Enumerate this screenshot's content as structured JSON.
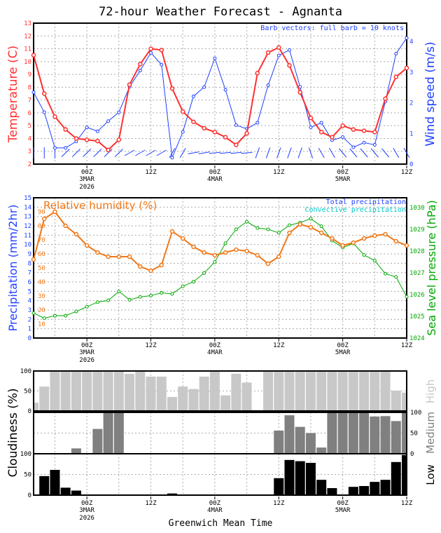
{
  "title": "72-hour Weather Forecast - Agnanta",
  "colors": {
    "temperature": "#ff3030",
    "wind": "#2040ff",
    "humidity": "#f07818",
    "pressure": "#00a800",
    "convective": "#00c8c8",
    "high_cloud": "#c8c8c8",
    "medium_cloud": "#808080",
    "low_cloud": "#000000"
  },
  "time_axis": {
    "xlabel": "Greenwich Mean Time",
    "ticks": [
      {
        "label": "00Z",
        "date": "3MAR",
        "year": "2026",
        "hour": 10
      },
      {
        "label": "12Z",
        "date": "",
        "year": "",
        "hour": 22
      },
      {
        "label": "00Z",
        "date": "4MAR",
        "year": "",
        "hour": 34
      },
      {
        "label": "12Z",
        "date": "",
        "year": "",
        "hour": 46
      },
      {
        "label": "00Z",
        "date": "5MAR",
        "year": "",
        "hour": 58
      },
      {
        "label": "12Z",
        "date": "",
        "year": "",
        "hour": 70
      }
    ]
  },
  "chart_data": [
    {
      "type": "line",
      "x_start": "14Z 2MAR 2026",
      "x_step_hours": 2,
      "ylabel": "Temperature (C)",
      "ylim": [
        2,
        13
      ],
      "yticks": [
        2,
        3,
        4,
        5,
        6,
        7,
        8,
        9,
        10,
        11,
        12,
        13
      ],
      "y2label": "Wind speed (m/s)",
      "y2lim": [
        0,
        4.3
      ],
      "y2ticks": [
        0,
        1,
        2,
        3,
        4
      ],
      "annotation": "Barb vectors: full barb = 10 knots",
      "grid": true,
      "series": [
        {
          "axis": "left",
          "values": [
            10.5,
            7.5,
            5.7,
            4.7,
            4.0,
            3.9,
            3.8,
            3.1,
            3.9,
            8.2,
            9.8,
            11.0,
            10.9,
            7.9,
            6.1,
            5.3,
            4.8,
            4.5,
            4.1,
            3.5,
            4.4,
            9.1,
            10.7,
            11.1,
            9.7,
            7.6,
            5.6,
            4.5,
            4.1,
            5.0,
            4.7,
            4.6,
            4.5,
            7.1,
            8.8,
            9.5
          ]
        },
        {
          "axis": "right",
          "values": [
            2.34,
            1.69,
            0.53,
            0.53,
            0.74,
            1.2,
            1.07,
            1.4,
            1.69,
            2.52,
            3.05,
            3.63,
            3.24,
            0.21,
            1.05,
            2.21,
            2.51,
            3.45,
            2.42,
            1.27,
            1.15,
            1.35,
            2.57,
            3.54,
            3.72,
            2.52,
            1.2,
            1.35,
            0.78,
            0.88,
            0.55,
            0.7,
            0.63,
            2.04,
            3.6,
            4.11
          ]
        }
      ]
    },
    {
      "type": "line",
      "ylabel": "Precipitation (mm/2hr)",
      "ylim": [
        0,
        15
      ],
      "yticks": [
        0,
        1,
        2,
        3,
        4,
        5,
        6,
        7,
        8,
        9,
        10,
        11,
        12,
        13,
        14,
        15
      ],
      "rh_label": "Relative humidity (%)",
      "rh_lim": [
        0,
        100
      ],
      "rh_ticks": [
        10,
        20,
        30,
        40,
        50,
        60,
        70,
        80,
        90
      ],
      "y2label": "Sea level pressure (hPa)",
      "y2lim": [
        1024,
        1030.2
      ],
      "y2ticks": [
        1024,
        1025,
        1026,
        1027,
        1028,
        1029,
        1030
      ],
      "legend": [
        "Total precipitation",
        "Convective precipitation"
      ],
      "grid": true,
      "series": [
        {
          "name": "Relative humidity (%)",
          "axis": "rh",
          "values": [
            56,
            85,
            90,
            80,
            74,
            66,
            61,
            58,
            58,
            58,
            51,
            48,
            52,
            76,
            71,
            65,
            61,
            59,
            61,
            63,
            62,
            59,
            53,
            58,
            75,
            81,
            79,
            75,
            71,
            66,
            68,
            71,
            73,
            74,
            69,
            66
          ]
        },
        {
          "axis": "right",
          "values": [
            1025.15,
            1024.91,
            1025.03,
            1025.03,
            1025.22,
            1025.44,
            1025.65,
            1025.73,
            1026.14,
            1025.76,
            1025.89,
            1025.95,
            1026.08,
            1026.03,
            1026.38,
            1026.59,
            1026.99,
            1027.5,
            1028.36,
            1029.0,
            1029.35,
            1029.06,
            1029.0,
            1028.84,
            1029.19,
            1029.31,
            1029.49,
            1029.14,
            1028.48,
            1028.16,
            1028.35,
            1027.82,
            1027.56,
            1026.96,
            1026.81,
            1025.9
          ]
        },
        {
          "name": "Total precipitation",
          "axis": "left",
          "values": [
            0,
            0,
            0,
            0,
            0,
            0,
            0,
            0,
            0,
            0,
            0,
            0,
            0,
            0,
            0,
            0,
            0,
            0,
            0,
            0,
            0,
            0,
            0,
            0,
            0,
            0,
            0,
            0,
            0,
            0,
            0,
            0,
            0,
            0,
            0,
            0
          ]
        }
      ]
    },
    {
      "type": "bar",
      "ylabel": "Cloudiness (%)",
      "ylim": [
        0,
        100
      ],
      "yticks": [
        0,
        50,
        100
      ],
      "panels": [
        {
          "name": "High",
          "values": [
            21,
            61,
            100,
            100,
            100,
            100,
            100,
            100,
            100,
            93,
            100,
            86,
            86,
            35,
            61,
            55,
            86,
            100,
            39,
            93,
            71,
            0,
            100,
            100,
            100,
            100,
            100,
            100,
            100,
            100,
            100,
            100,
            100,
            100,
            51,
            46
          ]
        },
        {
          "name": "Medium",
          "values": [
            0,
            0,
            0,
            0,
            13,
            0,
            60,
            100,
            100,
            0,
            0,
            0,
            0,
            0,
            0,
            0,
            0,
            0,
            0,
            0,
            0,
            0,
            0,
            56,
            93,
            65,
            50,
            15,
            100,
            100,
            100,
            100,
            90,
            91,
            79,
            100
          ]
        },
        {
          "name": "Low",
          "values": [
            0,
            46,
            61,
            18,
            11,
            0,
            0,
            0,
            0,
            0,
            0,
            0,
            0,
            4,
            0,
            0,
            0,
            0,
            0,
            0,
            0,
            0,
            0,
            41,
            85,
            82,
            78,
            37,
            17,
            0,
            20,
            22,
            32,
            37,
            80,
            97
          ]
        }
      ]
    }
  ]
}
